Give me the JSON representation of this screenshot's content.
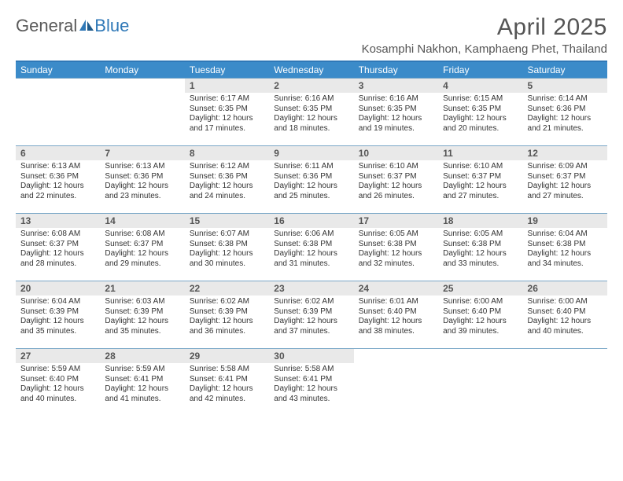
{
  "logo": {
    "text_gray": "General",
    "text_blue": "Blue"
  },
  "title": "April 2025",
  "location": "Kosamphi Nakhon, Kamphaeng Phet, Thailand",
  "colors": {
    "header_bar": "#3b8bc9",
    "border": "#2f78b7",
    "row_divider": "#7aa7c7",
    "daynum_bg": "#e9e9e9",
    "text_muted": "#555555",
    "text_body": "#333333"
  },
  "dow": [
    "Sunday",
    "Monday",
    "Tuesday",
    "Wednesday",
    "Thursday",
    "Friday",
    "Saturday"
  ],
  "weeks": [
    [
      null,
      null,
      {
        "n": "1",
        "sr": "6:17 AM",
        "ss": "6:35 PM",
        "dl": "12 hours and 17 minutes."
      },
      {
        "n": "2",
        "sr": "6:16 AM",
        "ss": "6:35 PM",
        "dl": "12 hours and 18 minutes."
      },
      {
        "n": "3",
        "sr": "6:16 AM",
        "ss": "6:35 PM",
        "dl": "12 hours and 19 minutes."
      },
      {
        "n": "4",
        "sr": "6:15 AM",
        "ss": "6:35 PM",
        "dl": "12 hours and 20 minutes."
      },
      {
        "n": "5",
        "sr": "6:14 AM",
        "ss": "6:36 PM",
        "dl": "12 hours and 21 minutes."
      }
    ],
    [
      {
        "n": "6",
        "sr": "6:13 AM",
        "ss": "6:36 PM",
        "dl": "12 hours and 22 minutes."
      },
      {
        "n": "7",
        "sr": "6:13 AM",
        "ss": "6:36 PM",
        "dl": "12 hours and 23 minutes."
      },
      {
        "n": "8",
        "sr": "6:12 AM",
        "ss": "6:36 PM",
        "dl": "12 hours and 24 minutes."
      },
      {
        "n": "9",
        "sr": "6:11 AM",
        "ss": "6:36 PM",
        "dl": "12 hours and 25 minutes."
      },
      {
        "n": "10",
        "sr": "6:10 AM",
        "ss": "6:37 PM",
        "dl": "12 hours and 26 minutes."
      },
      {
        "n": "11",
        "sr": "6:10 AM",
        "ss": "6:37 PM",
        "dl": "12 hours and 27 minutes."
      },
      {
        "n": "12",
        "sr": "6:09 AM",
        "ss": "6:37 PM",
        "dl": "12 hours and 27 minutes."
      }
    ],
    [
      {
        "n": "13",
        "sr": "6:08 AM",
        "ss": "6:37 PM",
        "dl": "12 hours and 28 minutes."
      },
      {
        "n": "14",
        "sr": "6:08 AM",
        "ss": "6:37 PM",
        "dl": "12 hours and 29 minutes."
      },
      {
        "n": "15",
        "sr": "6:07 AM",
        "ss": "6:38 PM",
        "dl": "12 hours and 30 minutes."
      },
      {
        "n": "16",
        "sr": "6:06 AM",
        "ss": "6:38 PM",
        "dl": "12 hours and 31 minutes."
      },
      {
        "n": "17",
        "sr": "6:05 AM",
        "ss": "6:38 PM",
        "dl": "12 hours and 32 minutes."
      },
      {
        "n": "18",
        "sr": "6:05 AM",
        "ss": "6:38 PM",
        "dl": "12 hours and 33 minutes."
      },
      {
        "n": "19",
        "sr": "6:04 AM",
        "ss": "6:38 PM",
        "dl": "12 hours and 34 minutes."
      }
    ],
    [
      {
        "n": "20",
        "sr": "6:04 AM",
        "ss": "6:39 PM",
        "dl": "12 hours and 35 minutes."
      },
      {
        "n": "21",
        "sr": "6:03 AM",
        "ss": "6:39 PM",
        "dl": "12 hours and 35 minutes."
      },
      {
        "n": "22",
        "sr": "6:02 AM",
        "ss": "6:39 PM",
        "dl": "12 hours and 36 minutes."
      },
      {
        "n": "23",
        "sr": "6:02 AM",
        "ss": "6:39 PM",
        "dl": "12 hours and 37 minutes."
      },
      {
        "n": "24",
        "sr": "6:01 AM",
        "ss": "6:40 PM",
        "dl": "12 hours and 38 minutes."
      },
      {
        "n": "25",
        "sr": "6:00 AM",
        "ss": "6:40 PM",
        "dl": "12 hours and 39 minutes."
      },
      {
        "n": "26",
        "sr": "6:00 AM",
        "ss": "6:40 PM",
        "dl": "12 hours and 40 minutes."
      }
    ],
    [
      {
        "n": "27",
        "sr": "5:59 AM",
        "ss": "6:40 PM",
        "dl": "12 hours and 40 minutes."
      },
      {
        "n": "28",
        "sr": "5:59 AM",
        "ss": "6:41 PM",
        "dl": "12 hours and 41 minutes."
      },
      {
        "n": "29",
        "sr": "5:58 AM",
        "ss": "6:41 PM",
        "dl": "12 hours and 42 minutes."
      },
      {
        "n": "30",
        "sr": "5:58 AM",
        "ss": "6:41 PM",
        "dl": "12 hours and 43 minutes."
      },
      null,
      null,
      null
    ]
  ],
  "labels": {
    "sunrise": "Sunrise:",
    "sunset": "Sunset:",
    "daylight": "Daylight:"
  }
}
